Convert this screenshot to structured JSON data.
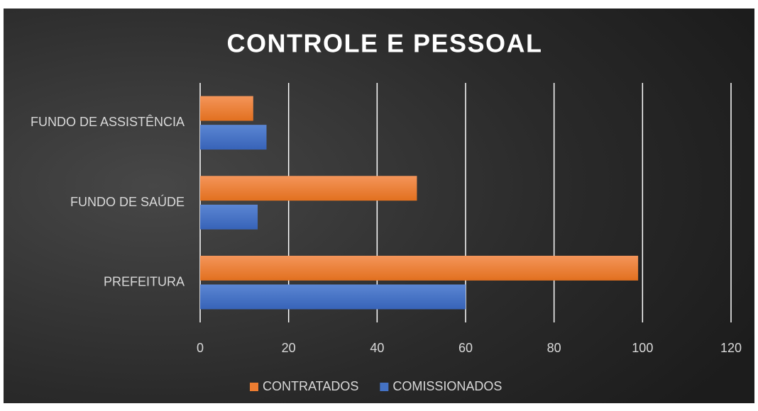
{
  "chart_data": {
    "type": "bar",
    "orientation": "horizontal",
    "title": "CONTROLE E PESSOAL",
    "categories": [
      "PREFEITURA",
      "FUNDO DE SAÚDE",
      "FUNDO DE ASSISTÊNCIA"
    ],
    "series": [
      {
        "name": "CONTRATADOS",
        "color": "#ed7d31",
        "values": [
          99,
          49,
          12
        ]
      },
      {
        "name": "COMISSIONADOS",
        "color": "#4472c4",
        "values": [
          60,
          13,
          15
        ]
      }
    ],
    "xlim": [
      0,
      120
    ],
    "xticks": [
      0,
      20,
      40,
      60,
      80,
      100,
      120
    ],
    "grid": true,
    "legend": "bottom"
  }
}
